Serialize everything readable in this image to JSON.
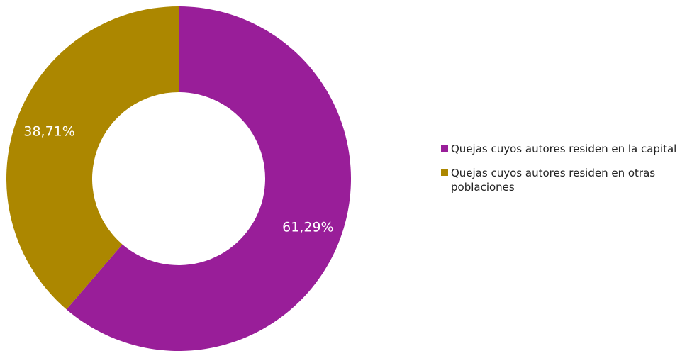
{
  "chart_data": {
    "type": "pie",
    "variant": "donut",
    "title": "",
    "series": [
      {
        "name": "Quejas cuyos autores residen en la capital",
        "value": 61.29,
        "label": "61,29%",
        "color": "#991e99"
      },
      {
        "name": "Quejas cuyos autores residen en otras poblaciones",
        "value": 38.71,
        "label": "38,71%",
        "color": "#ac8700"
      }
    ],
    "legend_position": "right"
  }
}
